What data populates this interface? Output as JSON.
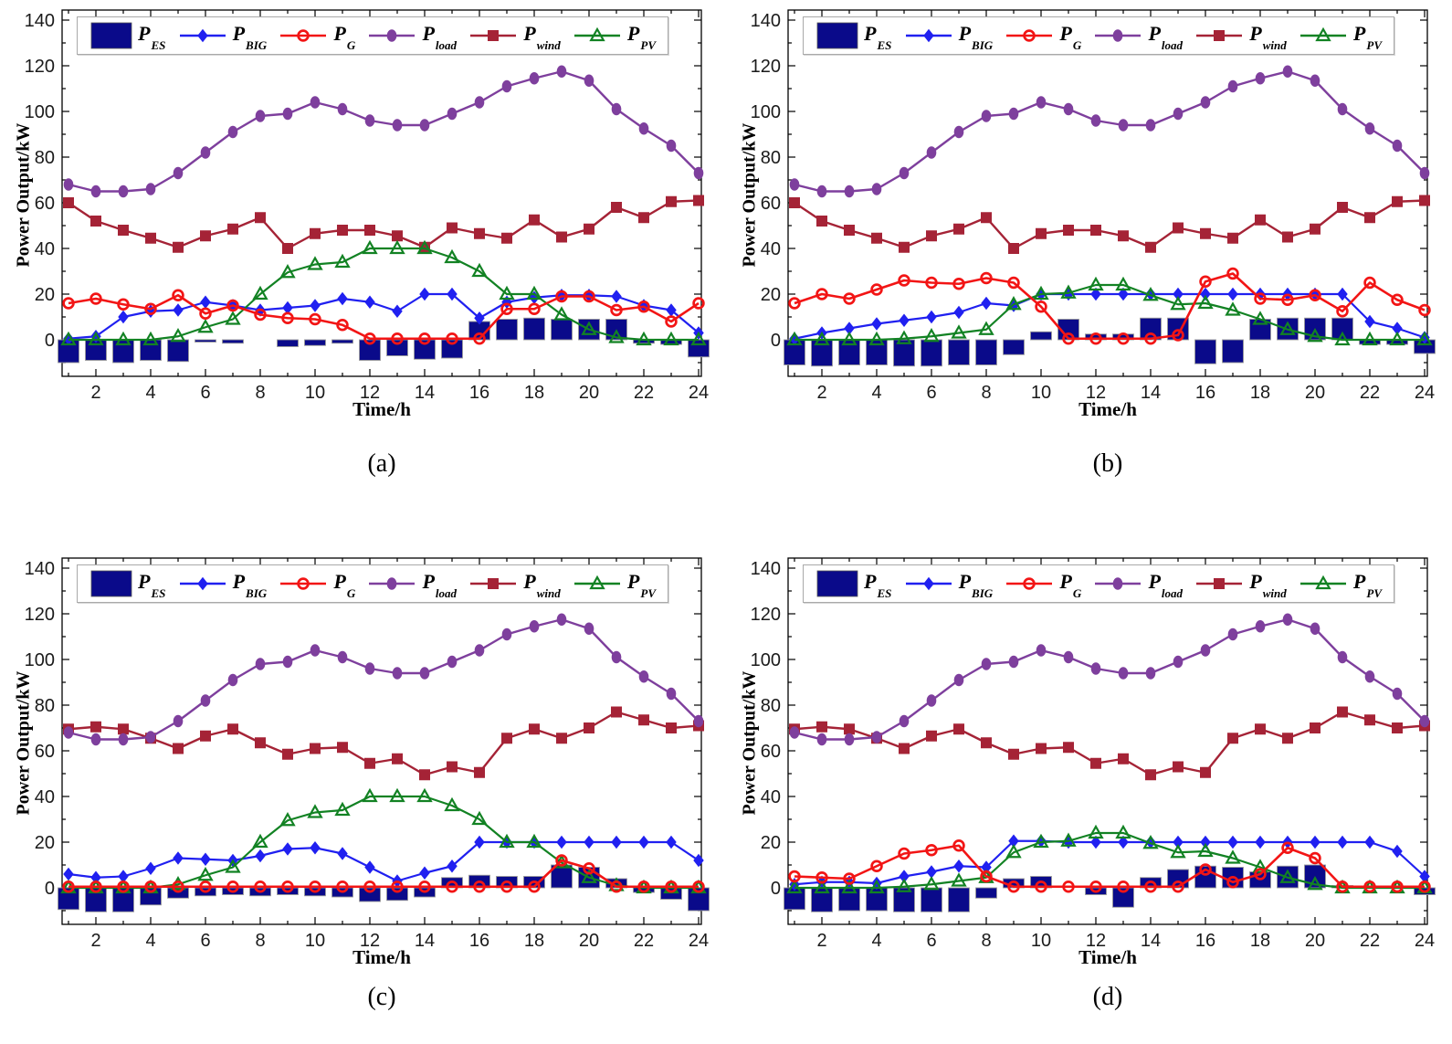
{
  "figure": {
    "xlabel": "Time/h",
    "ylabel": "Power Output/kW",
    "x_tick_labels": [
      2,
      4,
      6,
      8,
      10,
      12,
      14,
      16,
      18,
      20,
      22,
      24
    ],
    "y_tick_labels": [
      0,
      20,
      40,
      60,
      80,
      100,
      120,
      140
    ],
    "colors": {
      "es_bar": "#0a0a8a",
      "big_line": "#2020f0",
      "g_line": "#f21515",
      "load_line": "#7e3f9d",
      "wind_line": "#a52336",
      "pv_line": "#128223",
      "axis": "#000000",
      "legend_border": "#a9a9a9"
    },
    "legend": {
      "items": [
        {
          "id": "ES",
          "label_main": "P",
          "label_sub": "ES",
          "swatch": "bar"
        },
        {
          "id": "BIG",
          "label_main": "P",
          "label_sub": "BIG",
          "swatch": "diamond"
        },
        {
          "id": "G",
          "label_main": "P",
          "label_sub": "G",
          "swatch": "circle"
        },
        {
          "id": "load",
          "label_main": "P",
          "label_sub": "load",
          "swatch": "dot"
        },
        {
          "id": "wind",
          "label_main": "P",
          "label_sub": "wind",
          "swatch": "square"
        },
        {
          "id": "PV",
          "label_main": "P",
          "label_sub": "PV",
          "swatch": "triangle"
        }
      ]
    }
  },
  "chart_data": [
    {
      "type": "combo-bar-line",
      "caption": "(a)",
      "xlabel": "Time/h",
      "ylabel": "Power Output/kW",
      "x": [
        1,
        2,
        3,
        4,
        5,
        6,
        7,
        8,
        9,
        10,
        11,
        12,
        13,
        14,
        15,
        16,
        17,
        18,
        19,
        20,
        21,
        22,
        23,
        24
      ],
      "xlim": [
        0.75,
        24.1
      ],
      "ylim": [
        -16,
        144
      ],
      "grid": false,
      "legend_position": "top-inside",
      "series": [
        {
          "name": "P_ES",
          "type": "bar",
          "values": [
            -10,
            -9,
            -10,
            -9,
            -9.5,
            -1,
            -1.5,
            0,
            -3,
            -2.5,
            -1.5,
            -9,
            -7,
            -8.5,
            -8,
            8,
            9,
            9.5,
            9,
            9,
            9,
            -1.5,
            -2,
            -7.5
          ]
        },
        {
          "name": "P_BIG",
          "type": "line",
          "marker": "diamond",
          "values": [
            0.5,
            1.5,
            10,
            12.5,
            13,
            16.5,
            15,
            13,
            14,
            15,
            18,
            16.5,
            12.5,
            20,
            20,
            9.5,
            16.5,
            18.5,
            19.5,
            19.5,
            19,
            15,
            13,
            3
          ]
        },
        {
          "name": "P_G",
          "type": "line",
          "marker": "circle",
          "values": [
            16,
            18,
            15.5,
            13.5,
            19.5,
            11.5,
            15,
            11,
            9.5,
            9,
            6.5,
            0.5,
            0.5,
            0.5,
            0.5,
            0.5,
            13.5,
            13.5,
            19,
            19,
            13,
            14.5,
            8,
            16
          ]
        },
        {
          "name": "P_load",
          "type": "line",
          "marker": "dot",
          "values": [
            68,
            65,
            65,
            66,
            73,
            82,
            91,
            98,
            99,
            104,
            101,
            96,
            94,
            94,
            99,
            104,
            111,
            114.5,
            117.5,
            113.5,
            101,
            92.5,
            85,
            73
          ]
        },
        {
          "name": "P_wind",
          "type": "line",
          "marker": "square",
          "values": [
            60,
            52,
            48,
            44.5,
            40.5,
            45.5,
            48.5,
            53.5,
            40,
            46.5,
            48,
            48,
            45.5,
            40.5,
            49,
            46.5,
            44.5,
            52.5,
            45,
            48.5,
            58,
            53.5,
            60.5,
            61
          ]
        },
        {
          "name": "P_PV",
          "type": "line",
          "marker": "triangle",
          "values": [
            0,
            0,
            0,
            0,
            1.5,
            5.5,
            9,
            20,
            29.5,
            33,
            34,
            40,
            40,
            40,
            36,
            30,
            20,
            20,
            11,
            4.5,
            1,
            0,
            0,
            0
          ]
        }
      ]
    },
    {
      "type": "combo-bar-line",
      "caption": "(b)",
      "xlabel": "Time/h",
      "ylabel": "Power Output/kW",
      "x": [
        1,
        2,
        3,
        4,
        5,
        6,
        7,
        8,
        9,
        10,
        11,
        12,
        13,
        14,
        15,
        16,
        17,
        18,
        19,
        20,
        21,
        22,
        23,
        24
      ],
      "xlim": [
        0.75,
        24.1
      ],
      "ylim": [
        -16,
        144
      ],
      "grid": false,
      "legend_position": "top-inside",
      "series": [
        {
          "name": "P_ES",
          "type": "bar",
          "values": [
            -11,
            -11.5,
            -11,
            -11,
            -11.5,
            -11.5,
            -11,
            -11,
            -6.5,
            3.5,
            9,
            2.5,
            2.5,
            9.5,
            9.5,
            -10.5,
            -10,
            9,
            9.5,
            9.5,
            9.5,
            -2,
            -2,
            -6
          ]
        },
        {
          "name": "P_BIG",
          "type": "line",
          "marker": "diamond",
          "values": [
            0.5,
            3,
            5,
            7,
            8.5,
            10,
            12,
            16,
            15,
            20,
            20,
            20,
            20,
            20,
            20,
            20,
            20,
            20,
            20,
            20,
            20,
            8,
            5,
            1
          ]
        },
        {
          "name": "P_G",
          "type": "line",
          "marker": "circle",
          "values": [
            16,
            20,
            18,
            22,
            26,
            25,
            24.5,
            27,
            25,
            14.5,
            0.5,
            0.5,
            0.5,
            0.5,
            2,
            25.5,
            29,
            18,
            17.5,
            19.5,
            12.5,
            25,
            17.5,
            13
          ]
        },
        {
          "name": "P_load",
          "type": "line",
          "marker": "dot",
          "values": [
            68,
            65,
            65,
            66,
            73,
            82,
            91,
            98,
            99,
            104,
            101,
            96,
            94,
            94,
            99,
            104,
            111,
            114.5,
            117.5,
            113.5,
            101,
            92.5,
            85,
            73
          ]
        },
        {
          "name": "P_wind",
          "type": "line",
          "marker": "square",
          "values": [
            60,
            52,
            48,
            44.5,
            40.5,
            45.5,
            48.5,
            53.5,
            40,
            46.5,
            48,
            48,
            45.5,
            40.5,
            49,
            46.5,
            44.5,
            52.5,
            45,
            48.5,
            58,
            53.5,
            60.5,
            61
          ]
        },
        {
          "name": "P_PV",
          "type": "line",
          "marker": "triangle",
          "values": [
            0,
            0,
            0,
            0,
            0.5,
            1.5,
            3,
            4.5,
            15.5,
            20,
            20.5,
            24,
            24,
            19.5,
            15.5,
            16,
            13,
            9,
            4.5,
            1.5,
            0,
            0,
            0,
            0
          ]
        }
      ]
    },
    {
      "type": "combo-bar-line",
      "caption": "(c)",
      "xlabel": "Time/h",
      "ylabel": "Power Output/kW",
      "x": [
        1,
        2,
        3,
        4,
        5,
        6,
        7,
        8,
        9,
        10,
        11,
        12,
        13,
        14,
        15,
        16,
        17,
        18,
        19,
        20,
        21,
        22,
        23,
        24
      ],
      "xlim": [
        0.75,
        24.1
      ],
      "ylim": [
        -16,
        144
      ],
      "grid": false,
      "legend_position": "top-inside",
      "series": [
        {
          "name": "P_ES",
          "type": "bar",
          "values": [
            -9.5,
            -10.5,
            -10.5,
            -7.5,
            -4.5,
            -3.5,
            -3,
            -3.5,
            -3,
            -3.5,
            -4,
            -6,
            -5.5,
            -4,
            4.5,
            5.5,
            5,
            5,
            10,
            9,
            4,
            -2,
            -5,
            -10
          ]
        },
        {
          "name": "P_BIG",
          "type": "line",
          "marker": "diamond",
          "values": [
            6,
            4.5,
            5,
            8.5,
            13,
            12.5,
            12,
            14,
            17,
            17.5,
            15,
            9,
            3,
            6.5,
            9.5,
            20,
            20,
            20,
            20,
            20,
            20,
            20,
            20,
            12
          ]
        },
        {
          "name": "P_G",
          "type": "line",
          "marker": "circle",
          "values": [
            0.5,
            0.5,
            0.5,
            0.5,
            0.5,
            0.5,
            0.5,
            0.5,
            0.5,
            0.5,
            0.5,
            0.5,
            0.5,
            0.5,
            0.5,
            0.5,
            0.5,
            0.5,
            12,
            8.5,
            0.5,
            0.5,
            0.5,
            0.5
          ]
        },
        {
          "name": "P_load",
          "type": "line",
          "marker": "dot",
          "values": [
            68,
            65,
            65,
            66,
            73,
            82,
            91,
            98,
            99,
            104,
            101,
            96,
            94,
            94,
            99,
            104,
            111,
            114.5,
            117.5,
            113.5,
            101,
            92.5,
            85,
            73
          ]
        },
        {
          "name": "P_wind",
          "type": "line",
          "marker": "square",
          "values": [
            69.5,
            70.5,
            69.5,
            65.5,
            61,
            66.5,
            69.5,
            63.5,
            58.5,
            61,
            61.5,
            54.5,
            56.5,
            49.5,
            53,
            50.5,
            65.5,
            69.5,
            65.5,
            70,
            77,
            73.5,
            70,
            71
          ]
        },
        {
          "name": "P_PV",
          "type": "line",
          "marker": "triangle",
          "values": [
            0,
            0,
            0,
            0,
            1.5,
            5.5,
            9,
            20,
            29.5,
            33,
            34,
            40,
            40,
            40,
            36,
            30,
            20,
            20,
            11,
            4.5,
            1,
            0,
            0,
            0
          ]
        }
      ]
    },
    {
      "type": "combo-bar-line",
      "caption": "(d)",
      "xlabel": "Time/h",
      "ylabel": "Power Output/kW",
      "x": [
        1,
        2,
        3,
        4,
        5,
        6,
        7,
        8,
        9,
        10,
        11,
        12,
        13,
        14,
        15,
        16,
        17,
        18,
        19,
        20,
        21,
        22,
        23,
        24
      ],
      "xlim": [
        0.75,
        24.1
      ],
      "ylim": [
        -16,
        144
      ],
      "grid": false,
      "legend_position": "top-inside",
      "series": [
        {
          "name": "P_ES",
          "type": "bar",
          "values": [
            -9.5,
            -10.5,
            -10,
            -10,
            -10.5,
            -10.5,
            -10.5,
            -4.5,
            4,
            5,
            0,
            -3,
            -8.5,
            4.5,
            8,
            9.5,
            9,
            7,
            9.5,
            10,
            1,
            0,
            0,
            -3
          ]
        },
        {
          "name": "P_BIG",
          "type": "line",
          "marker": "diamond",
          "values": [
            1.5,
            2.5,
            2.5,
            2,
            5,
            7,
            9.5,
            9,
            20.5,
            20.5,
            20,
            20,
            20,
            20,
            20,
            20,
            20,
            20,
            20,
            20,
            20,
            20,
            16,
            5
          ]
        },
        {
          "name": "P_G",
          "type": "line",
          "marker": "circle",
          "values": [
            5,
            4.5,
            4,
            9.5,
            15,
            16.5,
            18.5,
            5,
            0.5,
            0.5,
            0.5,
            0.5,
            0.5,
            0.5,
            0.5,
            8,
            2.5,
            6,
            17.5,
            13,
            0.5,
            0.5,
            0.5,
            0.5
          ]
        },
        {
          "name": "P_load",
          "type": "line",
          "marker": "dot",
          "values": [
            68,
            65,
            65,
            66,
            73,
            82,
            91,
            98,
            99,
            104,
            101,
            96,
            94,
            94,
            99,
            104,
            111,
            114.5,
            117.5,
            113.5,
            101,
            92.5,
            85,
            73
          ]
        },
        {
          "name": "P_wind",
          "type": "line",
          "marker": "square",
          "values": [
            69.5,
            70.5,
            69.5,
            65.5,
            61,
            66.5,
            69.5,
            63.5,
            58.5,
            61,
            61.5,
            54.5,
            56.5,
            49.5,
            53,
            50.5,
            65.5,
            69.5,
            65.5,
            70,
            77,
            73.5,
            70,
            71
          ]
        },
        {
          "name": "P_PV",
          "type": "line",
          "marker": "triangle",
          "values": [
            0,
            0,
            0,
            0,
            0.5,
            1.5,
            3,
            4.5,
            15.5,
            20,
            20.5,
            24,
            24,
            19.5,
            15.5,
            16,
            13,
            9,
            4.5,
            1.5,
            0,
            0,
            0,
            0
          ]
        }
      ]
    }
  ]
}
